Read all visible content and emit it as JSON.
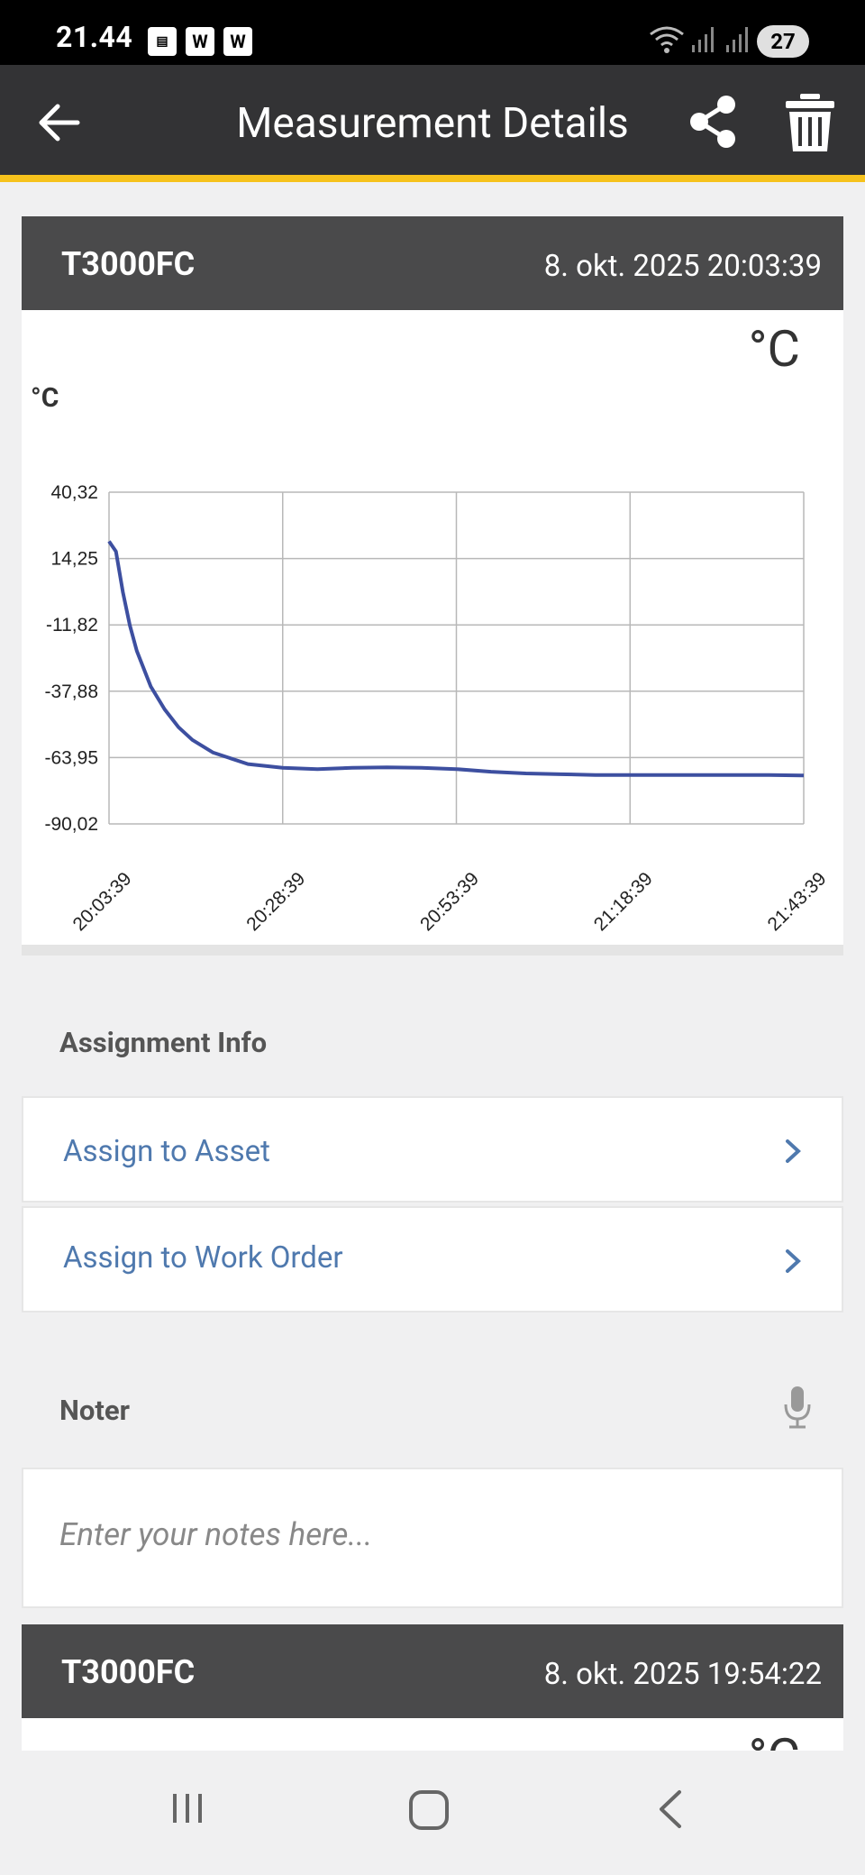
{
  "status_bar": {
    "time": "21.44",
    "icons": [
      "sim-card-icon",
      "w-app-icon",
      "w-app-icon"
    ],
    "right_icons": [
      "wifi-5g-icon",
      "signal-icon",
      "signal-icon"
    ],
    "battery": "27"
  },
  "app_bar": {
    "title": "Measurement Details",
    "back_icon": "arrow-left-icon",
    "share_icon": "share-icon",
    "delete_icon": "trash-icon",
    "accent_color": "#f6c21c"
  },
  "measurement": {
    "device": "T3000FC",
    "date": "8. okt. 2025 20:03:39",
    "unit_large": "°C",
    "unit_small": "°C"
  },
  "chart_data": {
    "type": "line",
    "title": "",
    "xlabel": "",
    "ylabel": "°C",
    "y_ticks": [
      "40,32",
      "14,25",
      "-11,82",
      "-37,88",
      "-63,95",
      "-90,02"
    ],
    "x_ticks": [
      "20:03:39",
      "20:28:39",
      "20:53:39",
      "21:18:39",
      "21:43:39"
    ],
    "ylim": [
      -90.02,
      40.32
    ],
    "grid": true,
    "line_color": "#3d4fa0",
    "series": [
      {
        "x": [
          0,
          1,
          2,
          3,
          4,
          6,
          8,
          10,
          12,
          15,
          20,
          25,
          30,
          35,
          40,
          45,
          50,
          55,
          60,
          65,
          70,
          75,
          80,
          85,
          90,
          95,
          100
        ],
        "values": [
          21.0,
          17.0,
          1.0,
          -12.0,
          -22.0,
          -36.0,
          -45.0,
          -52.0,
          -57.0,
          -62.0,
          -66.5,
          -68.0,
          -68.5,
          -68.0,
          -67.8,
          -68.0,
          -68.5,
          -69.5,
          -70.2,
          -70.5,
          -70.8,
          -70.8,
          -70.8,
          -70.8,
          -70.8,
          -70.8,
          -71.0
        ]
      }
    ]
  },
  "assignment": {
    "section_title": "Assignment Info",
    "items": [
      {
        "label": "Assign to Asset"
      },
      {
        "label": "Assign to Work Order"
      }
    ]
  },
  "notes": {
    "section_title": "Noter",
    "placeholder": "Enter your notes here...",
    "mic_icon": "microphone-icon"
  },
  "measurement2": {
    "device": "T3000FC",
    "date": "8. okt. 2025 19:54:22",
    "unit_large": "°C"
  },
  "nav_bar": {
    "recent_icon": "recent-apps-icon",
    "home_icon": "home-icon",
    "back_icon": "back-icon"
  }
}
